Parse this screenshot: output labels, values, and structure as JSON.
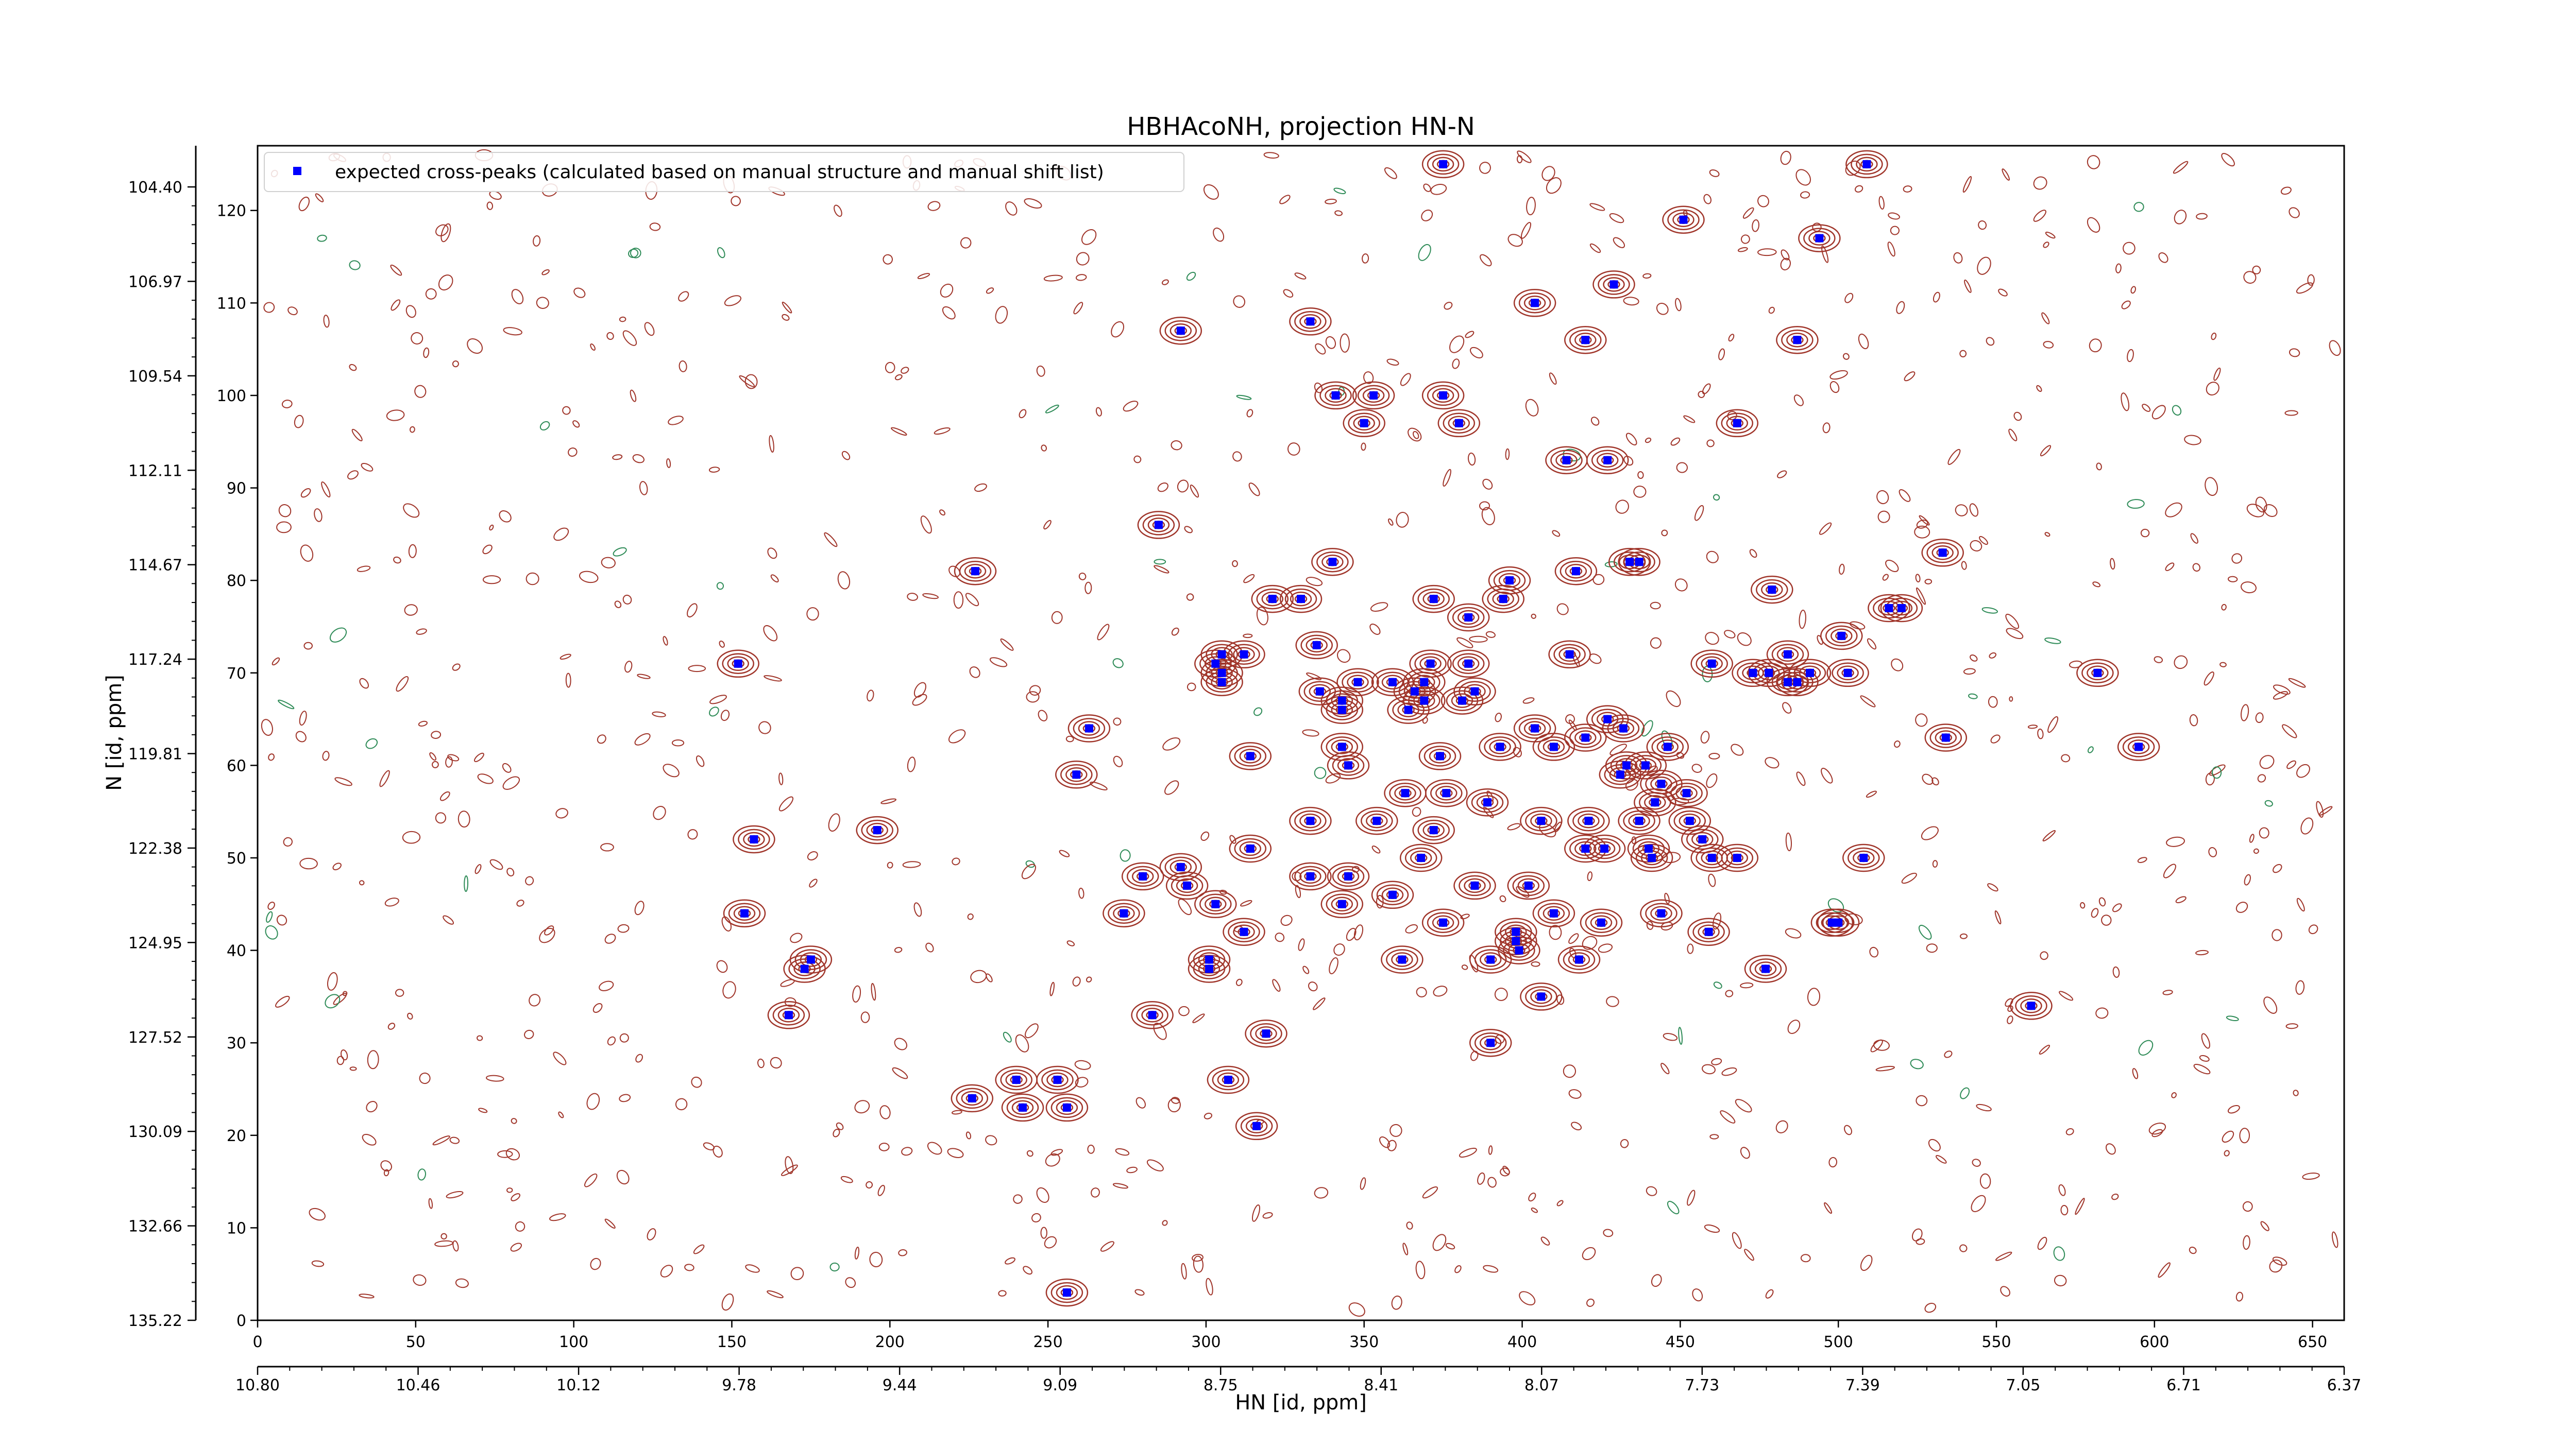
{
  "chart_data": {
    "type": "scatter",
    "title": "HBHAcoNH, projection HN-N",
    "xlabel": "HN [id, ppm]",
    "ylabel": "N [id, ppm]",
    "x_index_range": [
      0,
      660
    ],
    "y_index_range": [
      0,
      127
    ],
    "x_index_ticks": [
      "0",
      "50",
      "100",
      "150",
      "200",
      "250",
      "300",
      "350",
      "400",
      "450",
      "500",
      "550",
      "600",
      "650"
    ],
    "y_index_ticks": [
      "0",
      "10",
      "20",
      "30",
      "40",
      "50",
      "60",
      "70",
      "80",
      "90",
      "100",
      "110",
      "120"
    ],
    "x_ppm_ticks": [
      "10.80",
      "10.46",
      "10.12",
      "9.78",
      "9.44",
      "9.09",
      "8.75",
      "8.41",
      "8.07",
      "7.73",
      "7.39",
      "7.05",
      "6.71",
      "6.37"
    ],
    "y_ppm_ticks": [
      "135.22",
      "132.66",
      "130.09",
      "127.52",
      "124.95",
      "122.38",
      "119.81",
      "117.24",
      "114.67",
      "112.11",
      "109.54",
      "106.97",
      "104.40"
    ],
    "legend_position": "top-left",
    "series": [
      {
        "name": "expected cross-peaks (calculated based on manual structure and manual shift list)",
        "color": "#0000ff",
        "marker": "square",
        "points": [
          [
            375,
            125
          ],
          [
            509,
            125
          ],
          [
            451,
            119
          ],
          [
            494,
            117
          ],
          [
            404,
            110
          ],
          [
            429,
            112
          ],
          [
            420,
            106
          ],
          [
            333,
            108
          ],
          [
            292,
            107
          ],
          [
            487,
            106
          ],
          [
            353,
            100
          ],
          [
            375,
            100
          ],
          [
            341,
            100
          ],
          [
            350,
            97
          ],
          [
            380,
            97
          ],
          [
            468,
            97
          ],
          [
            414,
            93
          ],
          [
            427,
            93
          ],
          [
            285,
            86
          ],
          [
            340,
            82
          ],
          [
            227,
            81
          ],
          [
            417,
            81
          ],
          [
            434,
            82
          ],
          [
            437,
            82
          ],
          [
            533,
            83
          ],
          [
            396,
            80
          ],
          [
            479,
            79
          ],
          [
            321,
            78
          ],
          [
            330,
            78
          ],
          [
            372,
            78
          ],
          [
            394,
            78
          ],
          [
            516,
            77
          ],
          [
            520,
            77
          ],
          [
            383,
            76
          ],
          [
            335,
            73
          ],
          [
            501,
            74
          ],
          [
            305,
            72
          ],
          [
            312,
            72
          ],
          [
            415,
            72
          ],
          [
            484,
            72
          ],
          [
            152,
            71
          ],
          [
            303,
            71
          ],
          [
            305,
            70
          ],
          [
            383,
            71
          ],
          [
            371,
            71
          ],
          [
            460,
            71
          ],
          [
            473,
            70
          ],
          [
            478,
            70
          ],
          [
            491,
            70
          ],
          [
            503,
            70
          ],
          [
            582,
            70
          ],
          [
            484,
            69
          ],
          [
            487,
            69
          ],
          [
            305,
            69
          ],
          [
            348,
            69
          ],
          [
            359,
            69
          ],
          [
            369,
            69
          ],
          [
            336,
            68
          ],
          [
            369,
            67
          ],
          [
            381,
            67
          ],
          [
            385,
            68
          ],
          [
            366,
            68
          ],
          [
            343,
            67
          ],
          [
            343,
            66
          ],
          [
            364,
            66
          ],
          [
            427,
            65
          ],
          [
            432,
            64
          ],
          [
            404,
            64
          ],
          [
            343,
            62
          ],
          [
            374,
            61
          ],
          [
            393,
            62
          ],
          [
            410,
            62
          ],
          [
            420,
            63
          ],
          [
            446,
            62
          ],
          [
            534,
            63
          ],
          [
            595,
            62
          ],
          [
            263,
            64
          ],
          [
            314,
            61
          ],
          [
            259,
            59
          ],
          [
            345,
            60
          ],
          [
            433,
            60
          ],
          [
            439,
            60
          ],
          [
            444,
            58
          ],
          [
            452,
            57
          ],
          [
            431,
            59
          ],
          [
            376,
            57
          ],
          [
            363,
            57
          ],
          [
            389,
            56
          ],
          [
            442,
            56
          ],
          [
            453,
            54
          ],
          [
            333,
            54
          ],
          [
            437,
            54
          ],
          [
            406,
            54
          ],
          [
            421,
            54
          ],
          [
            460,
            50
          ],
          [
            354,
            54
          ],
          [
            372,
            53
          ],
          [
            157,
            52
          ],
          [
            196,
            53
          ],
          [
            457,
            52
          ],
          [
            440,
            51
          ],
          [
            426,
            51
          ],
          [
            420,
            51
          ],
          [
            314,
            51
          ],
          [
            368,
            50
          ],
          [
            441,
            50
          ],
          [
            468,
            50
          ],
          [
            508,
            50
          ],
          [
            292,
            49
          ],
          [
            280,
            48
          ],
          [
            345,
            48
          ],
          [
            333,
            48
          ],
          [
            294,
            47
          ],
          [
            402,
            47
          ],
          [
            385,
            47
          ],
          [
            359,
            46
          ],
          [
            343,
            45
          ],
          [
            303,
            45
          ],
          [
            154,
            44
          ],
          [
            274,
            44
          ],
          [
            410,
            44
          ],
          [
            444,
            44
          ],
          [
            500,
            43
          ],
          [
            425,
            43
          ],
          [
            375,
            43
          ],
          [
            498,
            43
          ],
          [
            312,
            42
          ],
          [
            398,
            42
          ],
          [
            459,
            42
          ],
          [
            398,
            41
          ],
          [
            399,
            40
          ],
          [
            390,
            39
          ],
          [
            418,
            39
          ],
          [
            362,
            39
          ],
          [
            301,
            39
          ],
          [
            301,
            38
          ],
          [
            173,
            38
          ],
          [
            175,
            39
          ],
          [
            477,
            38
          ],
          [
            168,
            33
          ],
          [
            283,
            33
          ],
          [
            406,
            35
          ],
          [
            561,
            34
          ],
          [
            319,
            31
          ],
          [
            390,
            30
          ],
          [
            307,
            26
          ],
          [
            240,
            26
          ],
          [
            253,
            26
          ],
          [
            226,
            24
          ],
          [
            256,
            23
          ],
          [
            242,
            23
          ],
          [
            316,
            21
          ],
          [
            256,
            3
          ]
        ]
      }
    ]
  }
}
